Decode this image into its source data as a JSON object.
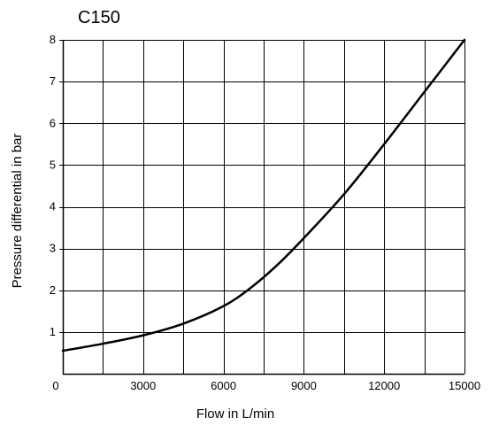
{
  "chart_data": {
    "type": "line",
    "title": "C150",
    "xlabel": "Flow in L/min",
    "ylabel": "Pressure differential in bar",
    "xlim": [
      0,
      15000
    ],
    "ylim": [
      0,
      8
    ],
    "grid": true,
    "x_grid_step": 1500,
    "y_grid_step": 1,
    "x_ticks": [
      0,
      3000,
      6000,
      9000,
      12000,
      15000
    ],
    "x_tick_labels": [
      "0",
      "3000",
      "6000",
      "9000",
      "12000",
      "15000"
    ],
    "y_ticks": [
      1,
      2,
      3,
      4,
      5,
      6,
      7,
      8
    ],
    "y_tick_labels": [
      "1",
      "2",
      "3",
      "4",
      "5",
      "6",
      "7",
      "8"
    ],
    "series": [
      {
        "name": "",
        "x": [
          0,
          1500,
          3000,
          4500,
          6000,
          7000,
          8000,
          9000,
          10500,
          12000,
          13500,
          15000
        ],
        "y": [
          0.55,
          0.72,
          0.92,
          1.2,
          1.62,
          2.05,
          2.6,
          3.25,
          4.3,
          5.5,
          6.75,
          8.0
        ]
      }
    ],
    "colors": {
      "line": "#000000",
      "grid": "#000000",
      "background": "#ffffff"
    }
  }
}
